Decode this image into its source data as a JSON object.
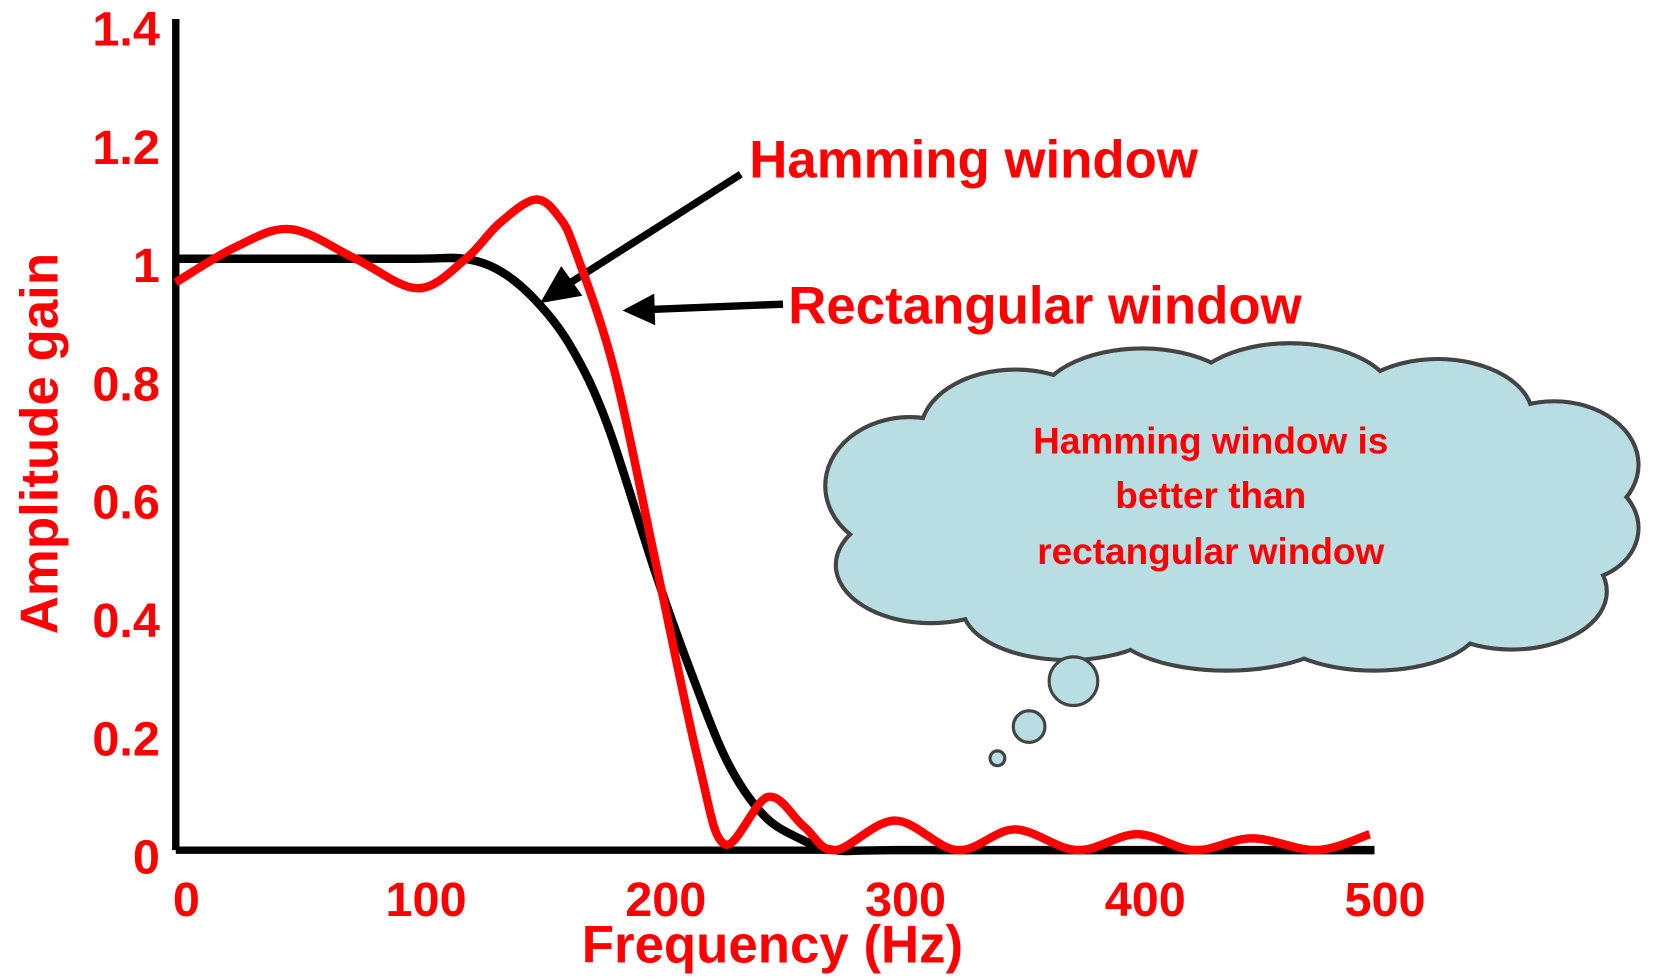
{
  "chart_data": {
    "type": "line",
    "xlabel": "Frequency (Hz)",
    "ylabel": "Amplitude gain",
    "xlim": [
      0,
      500
    ],
    "xticks": [
      0,
      100,
      200,
      300,
      400,
      500
    ],
    "ylim": [
      0,
      1.4
    ],
    "yticks": [
      0,
      0.2,
      0.4,
      0.6,
      0.8,
      1,
      1.2,
      1.4
    ],
    "series": [
      {
        "name": "Hamming window",
        "color": "#000000",
        "x": [
          0,
          50,
          100,
          120,
          135,
          150,
          165,
          180,
          200,
          215,
          230,
          245,
          260,
          275,
          300,
          400,
          500
        ],
        "values": [
          1,
          1,
          1,
          1,
          0.98,
          0.93,
          0.85,
          0.72,
          0.47,
          0.3,
          0.15,
          0.06,
          0.02,
          0,
          0,
          0,
          0
        ]
      },
      {
        "name": "Rectangular window",
        "color": "#ff0000",
        "x": [
          0,
          25,
          48,
          75,
          101,
          121,
          135,
          150,
          160,
          167,
          183,
          200,
          218,
          229,
          247,
          262,
          275,
          300,
          326,
          350,
          376,
          401,
          425,
          449,
          476,
          498
        ],
        "values": [
          0.96,
          1.02,
          1.05,
          1.0,
          0.95,
          1.0,
          1.06,
          1.1,
          1.07,
          1.01,
          0.81,
          0.49,
          0.15,
          0.01,
          0.09,
          0.04,
          0,
          0.05,
          0,
          0.035,
          0,
          0.027,
          0,
          0.02,
          0,
          0.027
        ]
      }
    ],
    "callout": [
      "Hamming window is",
      "better than",
      "rectangular window"
    ]
  }
}
